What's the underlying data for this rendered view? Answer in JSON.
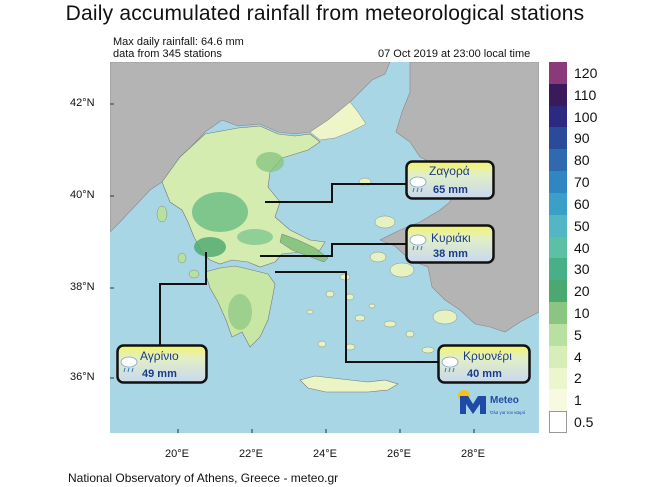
{
  "title": "Daily accumulated rainfall from meteorological stations",
  "subtitle": {
    "max": "Max daily rainfall: 64.6 mm",
    "count": "data from 345 stations",
    "time": "07 Oct 2019 at 23:00 local time"
  },
  "axes": {
    "lat": [
      "42°N",
      "40°N",
      "38°N",
      "36°N"
    ],
    "lon": [
      "20°E",
      "22°E",
      "24°E",
      "26°E",
      "28°E"
    ]
  },
  "colorbar": {
    "labels": [
      "120",
      "110",
      "100",
      "90",
      "80",
      "70",
      "60",
      "50",
      "40",
      "30",
      "20",
      "10",
      "5",
      "4",
      "2",
      "1",
      "0.5"
    ],
    "colors": [
      "#8a3a7a",
      "#3a1a5a",
      "#2c2a80",
      "#2a4a9a",
      "#2f6ab0",
      "#2f86c0",
      "#3aa0c8",
      "#52b6c4",
      "#5cc0a6",
      "#48b088",
      "#4aa870",
      "#8ac682",
      "#b8e0a0",
      "#d8eeb8",
      "#ecf6cc",
      "#f7fae0",
      "#ffffff"
    ]
  },
  "stations": [
    {
      "name": "Ζαγορά",
      "value": "65 mm"
    },
    {
      "name": "Κυριάκι",
      "value": "38 mm"
    },
    {
      "name": "Αγρίνιο",
      "value": "49 mm"
    },
    {
      "name": "Κρυονέρι",
      "value": "40 mm"
    }
  ],
  "logo": {
    "brand": "Meteo",
    "tagline": "Όλα για τον καιρό"
  },
  "footer": "National Observatory of Athens, Greece - meteo.gr"
}
